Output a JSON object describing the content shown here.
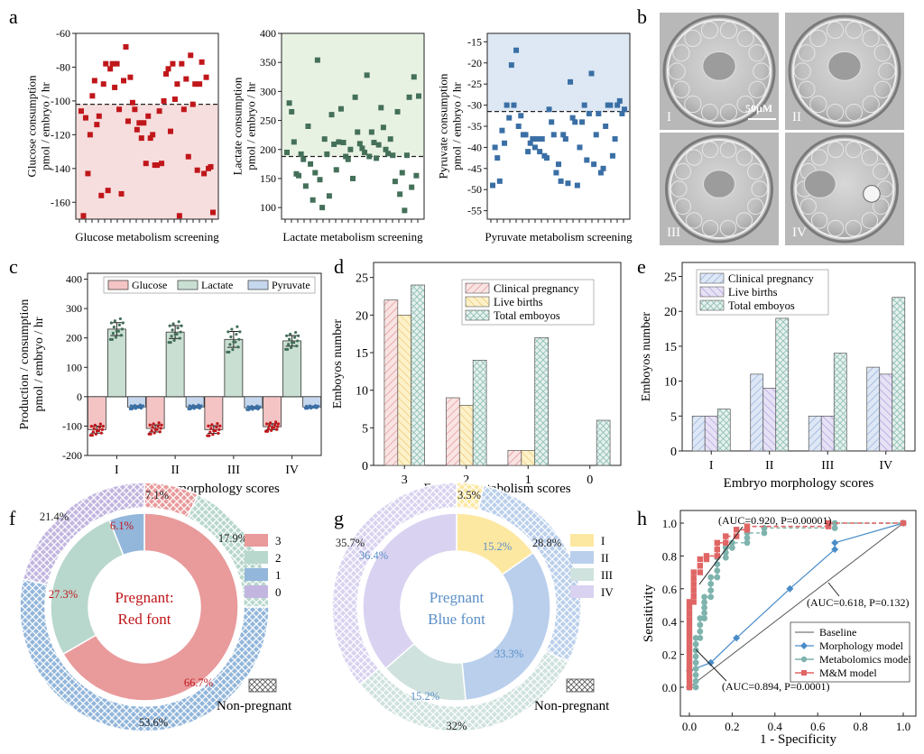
{
  "colors": {
    "red": "#c0161a",
    "red_fill": "#f6dede",
    "red_bar": "#f4c4c4",
    "green": "#44705a",
    "green_fill": "#e8f2e3",
    "green_bar": "#c9dfd2",
    "blue": "#3a6fa5",
    "blue_fill": "#dde8f4",
    "blue_bar": "#c5d7ed",
    "yellow_bar": "#fbe7a8",
    "purple_bar": "#d6cdee",
    "teal_bar": "#cde4e1"
  },
  "panels": {
    "a": {
      "label": "a"
    },
    "b": {
      "label": "b"
    },
    "c": {
      "label": "c"
    },
    "d": {
      "label": "d"
    },
    "e": {
      "label": "e"
    },
    "f": {
      "label": "f"
    },
    "g": {
      "label": "g"
    },
    "h": {
      "label": "h"
    }
  },
  "micrographs": {
    "labels": [
      "I",
      "II",
      "III",
      "IV"
    ],
    "scale_label": "50μM"
  },
  "chart_data": [
    {
      "id": "a1",
      "type": "scatter",
      "ylabel": "Glucose consumption\npmol / embryo / hr",
      "xlabel": "Glucose metabolism screening",
      "ylim": [
        -170,
        -60
      ],
      "yticks": [
        -60,
        -80,
        -100,
        -120,
        -140,
        -160
      ],
      "threshold": -102,
      "y": [
        -106,
        -168,
        -110,
        -143,
        -120,
        -97,
        -88,
        -114,
        -109,
        -156,
        -90,
        -78,
        -153,
        -81,
        -78,
        -92,
        -78,
        -105,
        -155,
        -88,
        -68,
        -112,
        -86,
        -101,
        -105,
        -117,
        -113,
        -122,
        -113,
        -137,
        -109,
        -122,
        -120,
        -138,
        -138,
        -106,
        -137,
        -100,
        -84,
        -81,
        -118,
        -78,
        -99,
        -90,
        -168,
        -78,
        -105,
        -87,
        -133,
        -73,
        -102,
        -90,
        -141,
        -90,
        -77,
        -143,
        -86,
        -140,
        -139,
        -166
      ]
    },
    {
      "id": "a2",
      "type": "scatter",
      "ylabel": "Lactate consumption\npmol / embryo / hr",
      "xlabel": "Lactate metabolism screening",
      "ylim": [
        80,
        400
      ],
      "yticks": [
        100,
        150,
        200,
        250,
        300,
        350,
        400
      ],
      "threshold": 188,
      "y": [
        195,
        280,
        265,
        213,
        158,
        155,
        192,
        183,
        137,
        240,
        175,
        113,
        160,
        354,
        148,
        100,
        218,
        192,
        120,
        260,
        209,
        165,
        213,
        270,
        212,
        188,
        183,
        200,
        150,
        290,
        230,
        210,
        202,
        195,
        328,
        188,
        230,
        212,
        185,
        208,
        272,
        238,
        200,
        193,
        218,
        190,
        145,
        265,
        123,
        160,
        95,
        190,
        290,
        135,
        325,
        155,
        292
      ]
    },
    {
      "id": "a3",
      "type": "scatter",
      "ylabel": "Pyruvate consumption\npmol / embryo / hr",
      "xlabel": "Pyruvate metabolism screening",
      "ylim": [
        -57,
        -13
      ],
      "yticks": [
        -15,
        -20,
        -25,
        -30,
        -35,
        -40,
        -45,
        -50,
        -55
      ],
      "threshold": -31.5,
      "y": [
        -49,
        -40,
        -42.5,
        -48,
        -36,
        -39,
        -30,
        -33,
        -20.5,
        -30,
        -17,
        -35,
        -32.5,
        -37,
        -37,
        -41,
        -39,
        -38,
        -40,
        -38,
        -41,
        -38,
        -42,
        -42.5,
        -31,
        -34,
        -37,
        -46,
        -44,
        -48,
        -37,
        -38,
        -48.5,
        -24.5,
        -33,
        -34,
        -49,
        -40,
        -34,
        -30,
        -43,
        -32,
        -22.5,
        -44,
        -37,
        -32,
        -46,
        -45,
        -35,
        -30,
        -30,
        -42,
        -38,
        -30,
        -29,
        -32,
        -31
      ]
    },
    {
      "id": "c",
      "type": "bar",
      "ylabel": "Production / consumption\npmol / embryo / hr",
      "xlabel": "Embryo morphology scores",
      "categories": [
        "I",
        "II",
        "III",
        "IV"
      ],
      "ylim": [
        -200,
        420
      ],
      "yticks": [
        -200,
        -100,
        0,
        100,
        200,
        300,
        400
      ],
      "series": [
        {
          "name": "Glucose",
          "values": [
            -112,
            -108,
            -112,
            -102
          ],
          "err": [
            12,
            12,
            13,
            10
          ]
        },
        {
          "name": "Lactate",
          "values": [
            230,
            220,
            195,
            190
          ],
          "err": [
            22,
            22,
            27,
            18
          ]
        },
        {
          "name": "Pyruvate",
          "values": [
            -35,
            -35,
            -38,
            -35
          ],
          "err": [
            4,
            4,
            4,
            3
          ]
        }
      ]
    },
    {
      "id": "d",
      "type": "bar",
      "ylabel": "Emboyos number",
      "xlabel": "Embryo metabolism scores",
      "categories": [
        "3",
        "2",
        "1",
        "0"
      ],
      "ylim": [
        0,
        27
      ],
      "yticks": [
        0,
        5,
        10,
        15,
        20,
        25
      ],
      "series": [
        {
          "name": "Clinical pregnancy",
          "values": [
            22,
            9,
            2,
            0
          ]
        },
        {
          "name": "Live births",
          "values": [
            20,
            8,
            2,
            0
          ]
        },
        {
          "name": "Total emboyos",
          "values": [
            24,
            14,
            17,
            6
          ]
        }
      ]
    },
    {
      "id": "e",
      "type": "bar",
      "ylabel": "Emboyos number",
      "xlabel": "Embryo morphology scores",
      "categories": [
        "I",
        "II",
        "III",
        "IV"
      ],
      "ylim": [
        0,
        27
      ],
      "yticks": [
        0,
        5,
        10,
        15,
        20,
        25
      ],
      "series": [
        {
          "name": "Clinical pregnancy",
          "values": [
            5,
            11,
            5,
            12
          ]
        },
        {
          "name": "Live births",
          "values": [
            5,
            9,
            5,
            11
          ]
        },
        {
          "name": "Total emboyos",
          "values": [
            6,
            19,
            14,
            22
          ]
        }
      ]
    },
    {
      "id": "f",
      "type": "pie",
      "legend": [
        "3",
        "2",
        "1",
        "0"
      ],
      "outer_values": [
        7.1,
        17.9,
        53.6,
        21.4
      ],
      "outer_labels": [
        "7.1%",
        "17.9%",
        "53.6%",
        "21.4%"
      ],
      "inner_values": [
        66.7,
        27.3,
        6.1
      ],
      "inner_labels": [
        "66.7%",
        "27.3%",
        "6.1%"
      ],
      "center_text": [
        "Pregnant:",
        "Red font"
      ],
      "pattern_label": "Non-pregnant"
    },
    {
      "id": "g",
      "type": "pie",
      "legend": [
        "I",
        "II",
        "III",
        "IV"
      ],
      "outer_values": [
        3.5,
        28.8,
        32,
        35.7
      ],
      "outer_labels": [
        "3.5%",
        "28.8%",
        "32%",
        "35.7%"
      ],
      "inner_values": [
        15.2,
        33.3,
        15.2,
        36.4
      ],
      "inner_labels": [
        "15.2%",
        "33.3%",
        "15.2%",
        "36.4%"
      ],
      "center_text": [
        "Pregnant",
        "Blue font"
      ],
      "pattern_label": "Non-pregnant"
    },
    {
      "id": "h",
      "type": "line",
      "xlabel": "1 - Specificity",
      "ylabel": "Sensitivity",
      "xlim": [
        0,
        1
      ],
      "ylim": [
        0,
        1
      ],
      "xticks": [
        0.0,
        0.2,
        0.4,
        0.6,
        0.8,
        1.0
      ],
      "yticks": [
        0.0,
        0.2,
        0.4,
        0.6,
        0.8,
        1.0
      ],
      "tick_labels_x": [
        "0.0",
        "0.2",
        "0.4",
        "0.6",
        "0.8",
        "1.0"
      ],
      "tick_labels_y": [
        "0.0",
        "0.2",
        "0.4",
        "0.6",
        "0.8",
        "1.0"
      ],
      "annotations": [
        "(AUC=0.920, P=0.00001)",
        "(AUC=0.618, P=0.132)",
        "(AUC=0.894, P=0.0001)"
      ],
      "series": [
        {
          "name": "Baseline",
          "x": [
            0,
            1
          ],
          "y": [
            0,
            1
          ]
        },
        {
          "name": "Morphology model",
          "x": [
            0,
            0,
            0.1,
            0.22,
            0.47,
            0.68,
            0.68,
            1
          ],
          "y": [
            0,
            0.1,
            0.15,
            0.3,
            0.6,
            0.84,
            0.88,
            1
          ]
        },
        {
          "name": "Metabolomics model",
          "x": [
            0,
            0.03,
            0.03,
            0.05,
            0.05,
            0.07,
            0.07,
            0.1,
            0.1,
            0.13,
            0.13,
            0.17,
            0.17,
            0.2,
            0.2,
            0.27,
            0.27,
            0.35,
            0.35,
            0.68,
            0.68,
            1
          ],
          "y": [
            0,
            0,
            0.3,
            0.3,
            0.42,
            0.42,
            0.55,
            0.55,
            0.67,
            0.67,
            0.79,
            0.79,
            0.85,
            0.85,
            0.88,
            0.88,
            0.94,
            0.94,
            0.97,
            0.97,
            1,
            1
          ]
        },
        {
          "name": "M&M model",
          "x": [
            0,
            0,
            0.02,
            0.02,
            0.05,
            0.05,
            0.08,
            0.08,
            0.13,
            0.13,
            0.17,
            0.17,
            0.22,
            0.22,
            0.27,
            0.27,
            0.65,
            0.65,
            1
          ],
          "y": [
            0,
            0.52,
            0.52,
            0.7,
            0.7,
            0.78,
            0.78,
            0.8,
            0.8,
            0.88,
            0.88,
            0.92,
            0.92,
            0.96,
            0.96,
            0.98,
            0.98,
            1,
            1
          ]
        }
      ]
    }
  ]
}
